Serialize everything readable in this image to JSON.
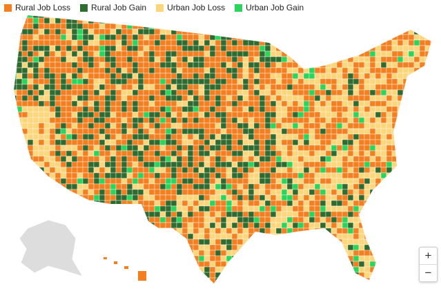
{
  "legend": [
    {
      "label": "Rural Job Loss",
      "color": "#f47f20"
    },
    {
      "label": "Rural Job Gain",
      "color": "#2e6b2e"
    },
    {
      "label": "Urban Job Loss",
      "color": "#fdd57a"
    },
    {
      "label": "Urban Job Gain",
      "color": "#2bd45a"
    }
  ],
  "zoom": {
    "in": "+",
    "out": "−"
  }
}
